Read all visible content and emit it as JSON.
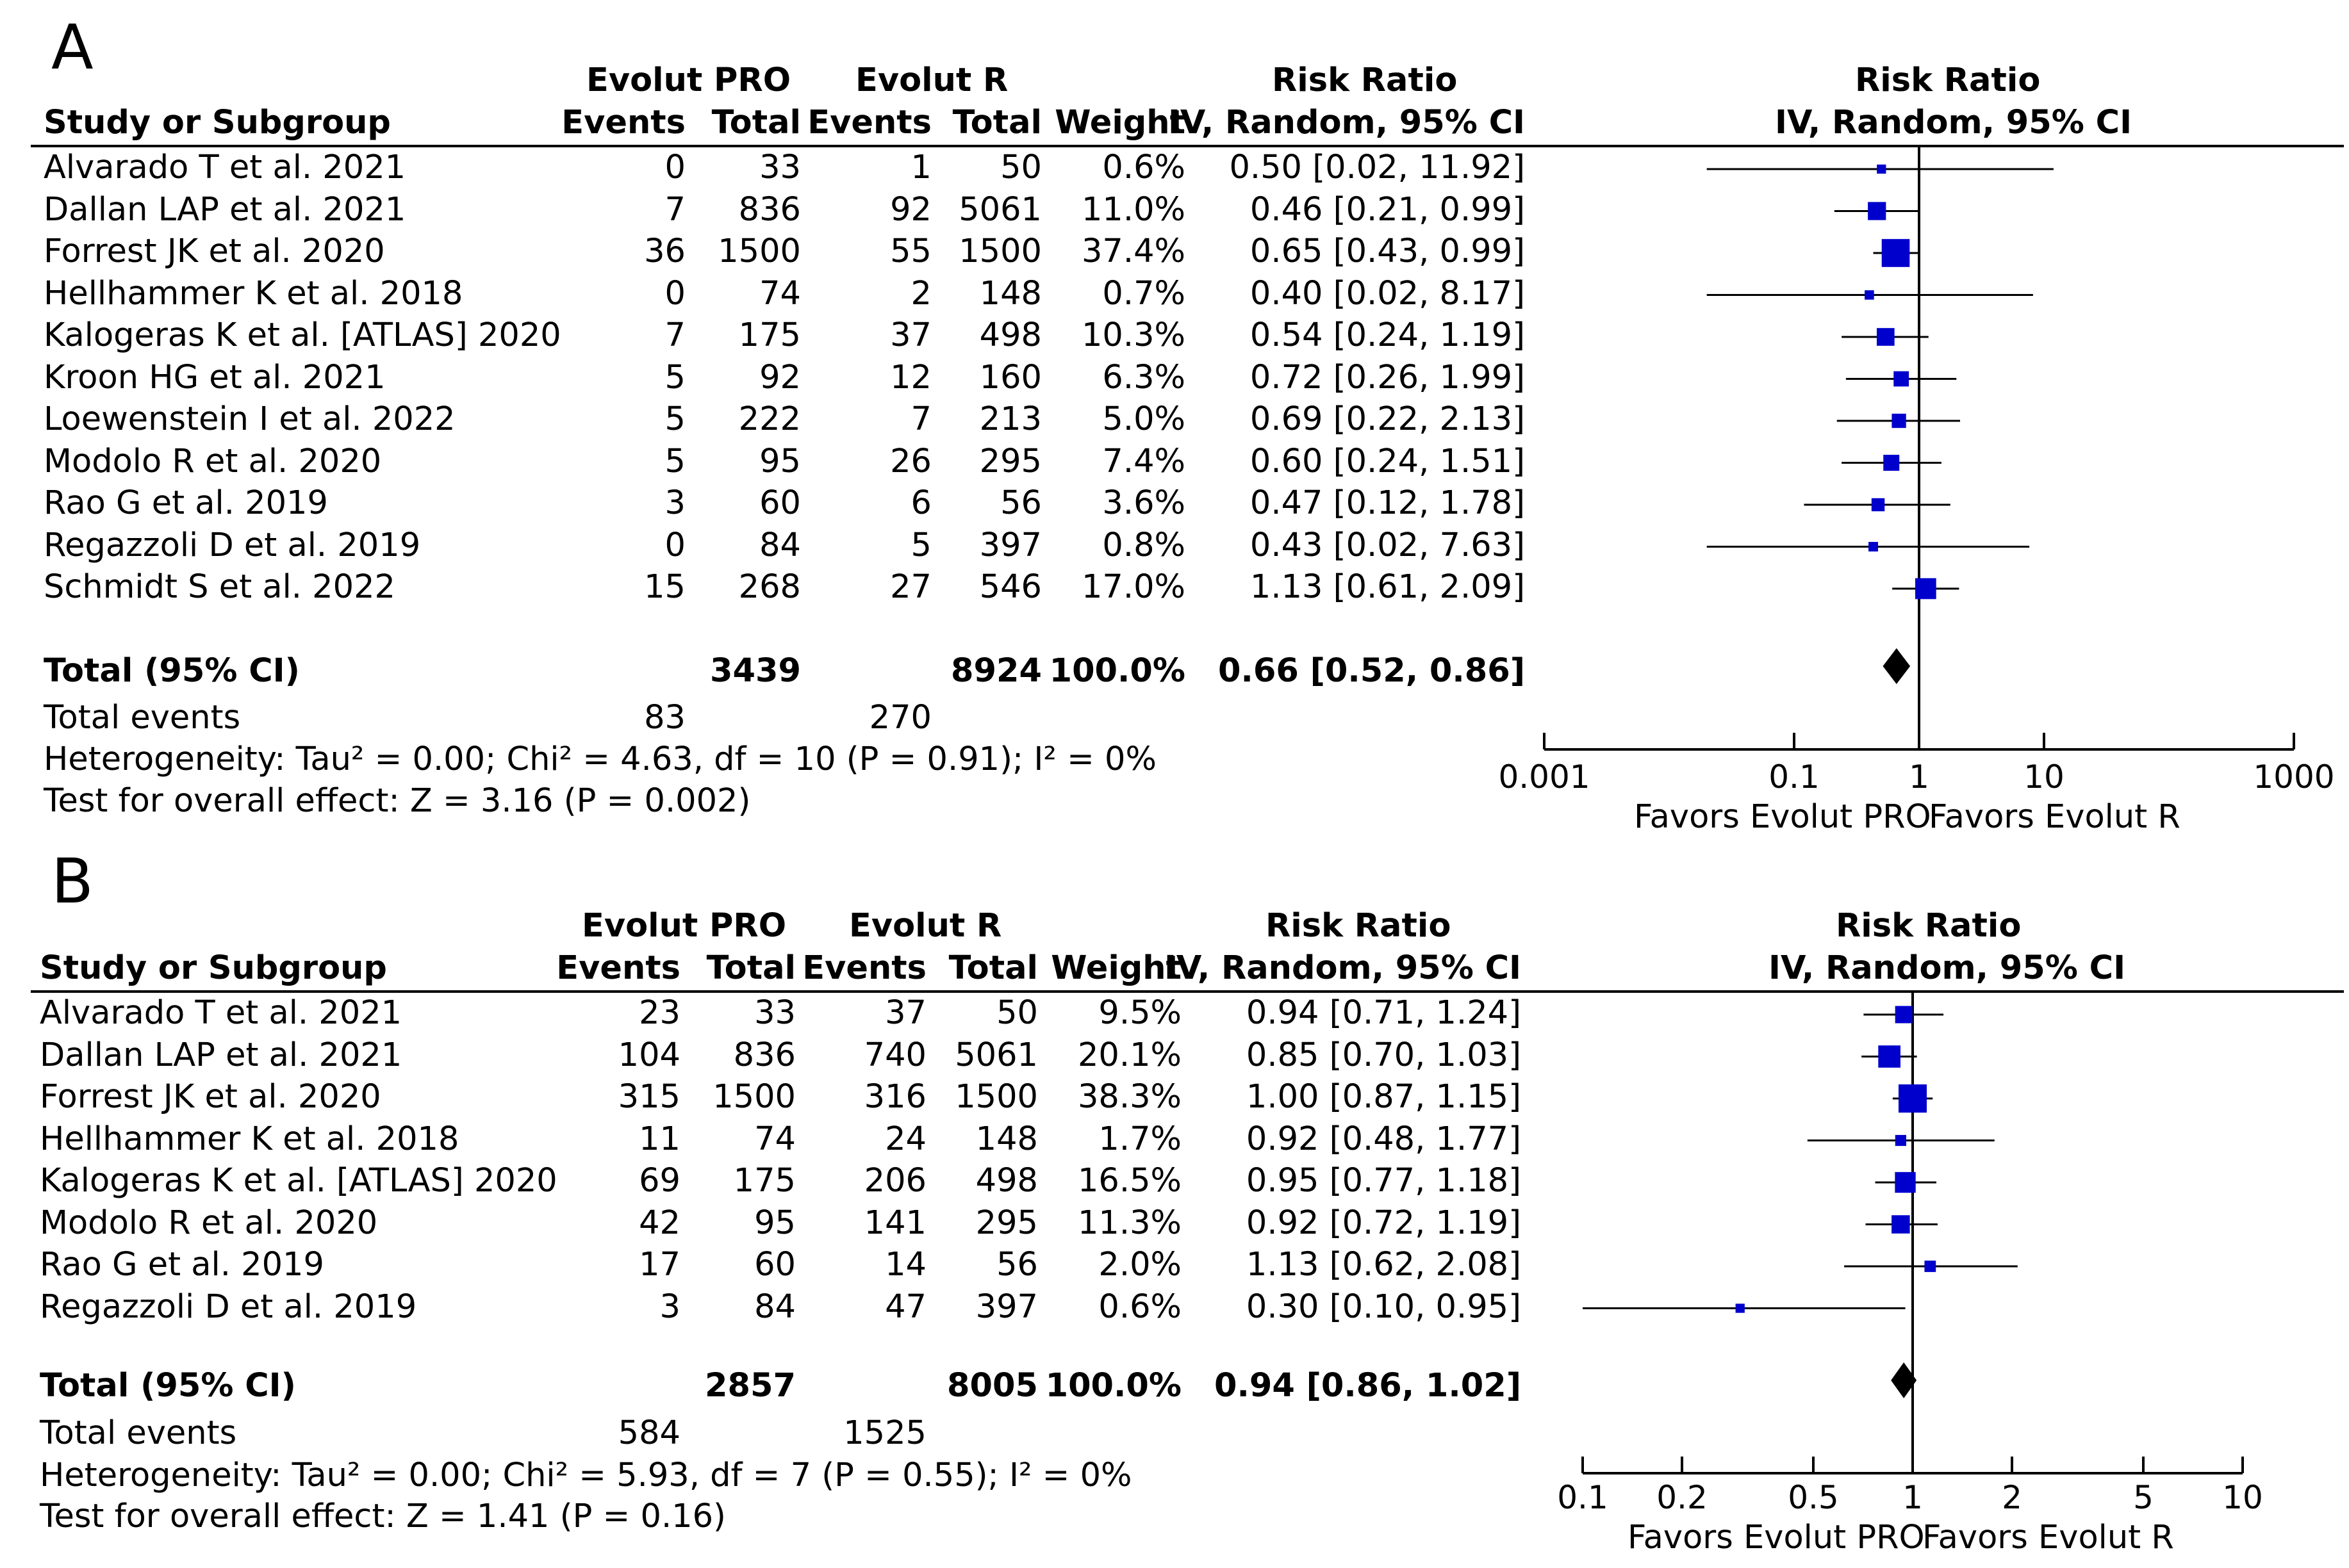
{
  "chart_data": [
    {
      "panel": "A",
      "type": "forest",
      "headers": {
        "group1": "Evolut PRO",
        "group2": "Evolut R",
        "study": "Study or Subgroup",
        "events": "Events",
        "total": "Total",
        "weight": "Weight",
        "rr": "Risk Ratio",
        "rr_method": "IV, Random, 95% CI"
      },
      "studies": [
        {
          "name": "Alvarado T et al. 2021",
          "e1": "0",
          "t1": "33",
          "e2": "1",
          "t2": "50",
          "weight": "0.6%",
          "ci_text": "0.50 [0.02, 11.92]",
          "rr": 0.5,
          "lo": 0.02,
          "hi": 11.92,
          "w": 0.6
        },
        {
          "name": "Dallan LAP et al. 2021",
          "e1": "7",
          "t1": "836",
          "e2": "92",
          "t2": "5061",
          "weight": "11.0%",
          "ci_text": "0.46 [0.21, 0.99]",
          "rr": 0.46,
          "lo": 0.21,
          "hi": 0.99,
          "w": 11.0
        },
        {
          "name": "Forrest JK et al. 2020",
          "e1": "36",
          "t1": "1500",
          "e2": "55",
          "t2": "1500",
          "weight": "37.4%",
          "ci_text": "0.65 [0.43, 0.99]",
          "rr": 0.65,
          "lo": 0.43,
          "hi": 0.99,
          "w": 37.4
        },
        {
          "name": "Hellhammer K et al. 2018",
          "e1": "0",
          "t1": "74",
          "e2": "2",
          "t2": "148",
          "weight": "0.7%",
          "ci_text": "0.40 [0.02, 8.17]",
          "rr": 0.4,
          "lo": 0.02,
          "hi": 8.17,
          "w": 0.7
        },
        {
          "name": "Kalogeras K et al. [ATLAS] 2020",
          "e1": "7",
          "t1": "175",
          "e2": "37",
          "t2": "498",
          "weight": "10.3%",
          "ci_text": "0.54 [0.24, 1.19]",
          "rr": 0.54,
          "lo": 0.24,
          "hi": 1.19,
          "w": 10.3
        },
        {
          "name": "Kroon HG et al. 2021",
          "e1": "5",
          "t1": "92",
          "e2": "12",
          "t2": "160",
          "weight": "6.3%",
          "ci_text": "0.72 [0.26, 1.99]",
          "rr": 0.72,
          "lo": 0.26,
          "hi": 1.99,
          "w": 6.3
        },
        {
          "name": "Loewenstein I et al. 2022",
          "e1": "5",
          "t1": "222",
          "e2": "7",
          "t2": "213",
          "weight": "5.0%",
          "ci_text": "0.69 [0.22, 2.13]",
          "rr": 0.69,
          "lo": 0.22,
          "hi": 2.13,
          "w": 5.0
        },
        {
          "name": "Modolo R et al. 2020",
          "e1": "5",
          "t1": "95",
          "e2": "26",
          "t2": "295",
          "weight": "7.4%",
          "ci_text": "0.60 [0.24, 1.51]",
          "rr": 0.6,
          "lo": 0.24,
          "hi": 1.51,
          "w": 7.4
        },
        {
          "name": "Rao G et al. 2019",
          "e1": "3",
          "t1": "60",
          "e2": "6",
          "t2": "56",
          "weight": "3.6%",
          "ci_text": "0.47 [0.12, 1.78]",
          "rr": 0.47,
          "lo": 0.12,
          "hi": 1.78,
          "w": 3.6
        },
        {
          "name": "Regazzoli D et al. 2019",
          "e1": "0",
          "t1": "84",
          "e2": "5",
          "t2": "397",
          "weight": "0.8%",
          "ci_text": "0.43 [0.02, 7.63]",
          "rr": 0.43,
          "lo": 0.02,
          "hi": 7.63,
          "w": 0.8
        },
        {
          "name": "Schmidt S et al. 2022",
          "e1": "15",
          "t1": "268",
          "e2": "27",
          "t2": "546",
          "weight": "17.0%",
          "ci_text": "1.13 [0.61, 2.09]",
          "rr": 1.13,
          "lo": 0.61,
          "hi": 2.09,
          "w": 17.0
        }
      ],
      "total": {
        "label": "Total (95% CI)",
        "t1": "3439",
        "t2": "8924",
        "weight": "100.0%",
        "ci_text": "0.66 [0.52, 0.86]",
        "rr": 0.66,
        "lo": 0.52,
        "hi": 0.86
      },
      "total_events": {
        "label": "Total events",
        "e1": "83",
        "e2": "270"
      },
      "heterogeneity_text": "Heterogeneity: Tau² = 0.00; Chi² = 4.63, df = 10 (P = 0.91); I² = 0%",
      "overall_effect_text": "Test for overall effect: Z = 3.16 (P = 0.002)",
      "axis": {
        "scale": "log",
        "min": 0.001,
        "max": 1000,
        "ticks": [
          0.001,
          0.1,
          1,
          10,
          1000
        ],
        "tick_labels": [
          "0.001",
          "0.1",
          "1",
          "10",
          "1000"
        ]
      },
      "favors_left": "Favors Evolut PRO",
      "favors_right": "Favors Evolut R",
      "marker_color": "#0000cc"
    },
    {
      "panel": "B",
      "type": "forest",
      "headers": {
        "group1": "Evolut PRO",
        "group2": "Evolut R",
        "study": "Study or Subgroup",
        "events": "Events",
        "total": "Total",
        "weight": "Weight",
        "rr": "Risk Ratio",
        "rr_method": "IV, Random, 95% CI"
      },
      "studies": [
        {
          "name": "Alvarado T et al. 2021",
          "e1": "23",
          "t1": "33",
          "e2": "37",
          "t2": "50",
          "weight": "9.5%",
          "ci_text": "0.94 [0.71, 1.24]",
          "rr": 0.94,
          "lo": 0.71,
          "hi": 1.24,
          "w": 9.5
        },
        {
          "name": "Dallan LAP et al. 2021",
          "e1": "104",
          "t1": "836",
          "e2": "740",
          "t2": "5061",
          "weight": "20.1%",
          "ci_text": "0.85 [0.70, 1.03]",
          "rr": 0.85,
          "lo": 0.7,
          "hi": 1.03,
          "w": 20.1
        },
        {
          "name": "Forrest JK et al. 2020",
          "e1": "315",
          "t1": "1500",
          "e2": "316",
          "t2": "1500",
          "weight": "38.3%",
          "ci_text": "1.00 [0.87, 1.15]",
          "rr": 1.0,
          "lo": 0.87,
          "hi": 1.15,
          "w": 38.3
        },
        {
          "name": "Hellhammer K et al. 2018",
          "e1": "11",
          "t1": "74",
          "e2": "24",
          "t2": "148",
          "weight": "1.7%",
          "ci_text": "0.92 [0.48, 1.77]",
          "rr": 0.92,
          "lo": 0.48,
          "hi": 1.77,
          "w": 1.7
        },
        {
          "name": "Kalogeras K et al. [ATLAS] 2020",
          "e1": "69",
          "t1": "175",
          "e2": "206",
          "t2": "498",
          "weight": "16.5%",
          "ci_text": "0.95 [0.77, 1.18]",
          "rr": 0.95,
          "lo": 0.77,
          "hi": 1.18,
          "w": 16.5
        },
        {
          "name": "Modolo R et al. 2020",
          "e1": "42",
          "t1": "95",
          "e2": "141",
          "t2": "295",
          "weight": "11.3%",
          "ci_text": "0.92 [0.72, 1.19]",
          "rr": 0.92,
          "lo": 0.72,
          "hi": 1.19,
          "w": 11.3
        },
        {
          "name": "Rao G et al. 2019",
          "e1": "17",
          "t1": "60",
          "e2": "14",
          "t2": "56",
          "weight": "2.0%",
          "ci_text": "1.13 [0.62, 2.08]",
          "rr": 1.13,
          "lo": 0.62,
          "hi": 2.08,
          "w": 2.0
        },
        {
          "name": "Regazzoli D et al. 2019",
          "e1": "3",
          "t1": "84",
          "e2": "47",
          "t2": "397",
          "weight": "0.6%",
          "ci_text": "0.30 [0.10, 0.95]",
          "rr": 0.3,
          "lo": 0.1,
          "hi": 0.95,
          "w": 0.6
        }
      ],
      "total": {
        "label": "Total (95% CI)",
        "t1": "2857",
        "t2": "8005",
        "weight": "100.0%",
        "ci_text": "0.94 [0.86, 1.02]",
        "rr": 0.94,
        "lo": 0.86,
        "hi": 1.02
      },
      "total_events": {
        "label": "Total events",
        "e1": "584",
        "e2": "1525"
      },
      "heterogeneity_text": "Heterogeneity: Tau² = 0.00; Chi² = 5.93, df = 7 (P = 0.55); I² = 0%",
      "overall_effect_text": "Test for overall effect: Z = 1.41 (P = 0.16)",
      "axis": {
        "scale": "log",
        "min": 0.1,
        "max": 10,
        "ticks": [
          0.1,
          0.2,
          0.5,
          1,
          2,
          5,
          10
        ],
        "tick_labels": [
          "0.1",
          "0.2",
          "0.5",
          "1",
          "2",
          "5",
          "10"
        ]
      },
      "favors_left": "Favors Evolut PRO",
      "favors_right": "Favors Evolut R",
      "marker_color": "#0000cc"
    }
  ],
  "panel_labels": [
    "A",
    "B"
  ]
}
